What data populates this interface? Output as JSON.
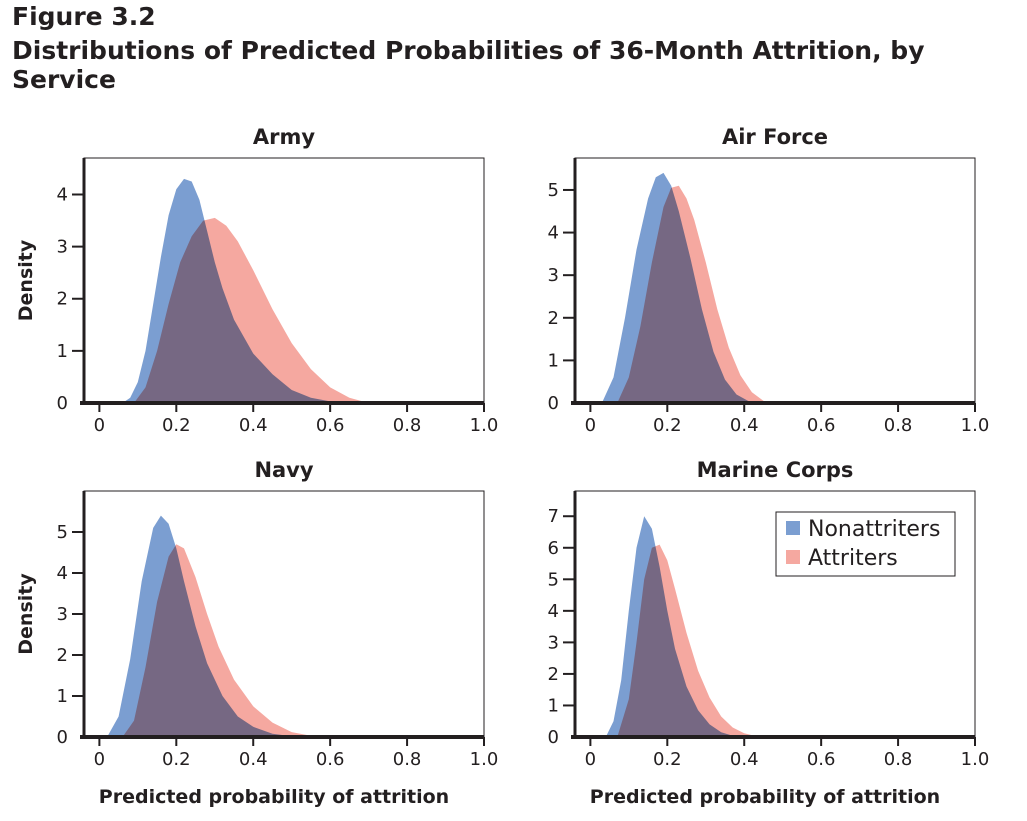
{
  "figure": {
    "label": "Figure 3.2",
    "title": "Distributions of Predicted Probabilities of 36-Month Attrition, by Service"
  },
  "colors": {
    "nonattriters": "#7b9ed1",
    "attriters": "#f5a8a0",
    "overlap_blend": "multiply",
    "axis": "#231f20"
  },
  "legend": {
    "placement": "top-right of Marine Corps panel",
    "items": [
      "Nonattriters",
      "Attriters"
    ]
  },
  "chart_data": [
    {
      "type": "area",
      "title": "Army",
      "xlabel": "",
      "ylabel": "Density",
      "xlim": [
        -0.04,
        1.0
      ],
      "ylim": [
        0,
        4.7
      ],
      "xticks": [
        "0",
        "0.2",
        "0.4",
        "0.6",
        "0.8",
        "1.0"
      ],
      "yticks": [
        "0",
        "1",
        "2",
        "3",
        "4"
      ],
      "xtick_values": [
        0,
        0.2,
        0.4,
        0.6,
        0.8,
        1.0
      ],
      "ytick_values": [
        0,
        1,
        2,
        3,
        4
      ],
      "grid": false,
      "series": [
        {
          "name": "Nonattriters",
          "x": [
            0.06,
            0.08,
            0.1,
            0.12,
            0.14,
            0.16,
            0.18,
            0.2,
            0.22,
            0.24,
            0.26,
            0.28,
            0.3,
            0.32,
            0.35,
            0.4,
            0.45,
            0.5,
            0.55,
            0.6,
            0.65
          ],
          "y": [
            0,
            0.1,
            0.4,
            1.0,
            1.9,
            2.8,
            3.6,
            4.1,
            4.3,
            4.25,
            3.9,
            3.3,
            2.7,
            2.2,
            1.6,
            0.95,
            0.55,
            0.25,
            0.1,
            0.03,
            0
          ]
        },
        {
          "name": "Attriters",
          "x": [
            0.09,
            0.12,
            0.15,
            0.18,
            0.21,
            0.24,
            0.27,
            0.3,
            0.33,
            0.36,
            0.4,
            0.45,
            0.5,
            0.55,
            0.6,
            0.65,
            0.7
          ],
          "y": [
            0,
            0.3,
            1.0,
            1.9,
            2.7,
            3.2,
            3.5,
            3.55,
            3.4,
            3.1,
            2.55,
            1.8,
            1.15,
            0.65,
            0.3,
            0.1,
            0
          ]
        }
      ]
    },
    {
      "type": "area",
      "title": "Air Force",
      "xlabel": "",
      "ylabel": "",
      "xlim": [
        -0.04,
        1.0
      ],
      "ylim": [
        0,
        5.75
      ],
      "xticks": [
        "0",
        "0.2",
        "0.4",
        "0.6",
        "0.8",
        "1.0"
      ],
      "yticks": [
        "0",
        "1",
        "2",
        "3",
        "4",
        "5"
      ],
      "xtick_values": [
        0,
        0.2,
        0.4,
        0.6,
        0.8,
        1.0
      ],
      "ytick_values": [
        0,
        1,
        2,
        3,
        4,
        5
      ],
      "grid": false,
      "series": [
        {
          "name": "Nonattriters",
          "x": [
            0.03,
            0.06,
            0.09,
            0.12,
            0.15,
            0.17,
            0.19,
            0.21,
            0.23,
            0.26,
            0.29,
            0.32,
            0.35,
            0.38,
            0.41,
            0.44
          ],
          "y": [
            0,
            0.6,
            2.0,
            3.6,
            4.8,
            5.3,
            5.4,
            5.1,
            4.5,
            3.4,
            2.2,
            1.2,
            0.55,
            0.2,
            0.05,
            0
          ]
        },
        {
          "name": "Attriters",
          "x": [
            0.07,
            0.1,
            0.13,
            0.16,
            0.19,
            0.21,
            0.23,
            0.25,
            0.27,
            0.3,
            0.33,
            0.36,
            0.39,
            0.42,
            0.45,
            0.48
          ],
          "y": [
            0,
            0.6,
            1.8,
            3.3,
            4.6,
            5.05,
            5.1,
            4.8,
            4.3,
            3.3,
            2.2,
            1.3,
            0.65,
            0.25,
            0.05,
            0
          ]
        }
      ]
    },
    {
      "type": "area",
      "title": "Navy",
      "xlabel": "Predicted probability of attrition",
      "ylabel": "Density",
      "xlim": [
        -0.04,
        1.0
      ],
      "ylim": [
        0,
        6.0
      ],
      "xticks": [
        "0",
        "0.2",
        "0.4",
        "0.6",
        "0.8",
        "1.0"
      ],
      "yticks": [
        "0",
        "1",
        "2",
        "3",
        "4",
        "5"
      ],
      "xtick_values": [
        0,
        0.2,
        0.4,
        0.6,
        0.8,
        1.0
      ],
      "ytick_values": [
        0,
        1,
        2,
        3,
        4,
        5
      ],
      "grid": false,
      "series": [
        {
          "name": "Nonattriters",
          "x": [
            0.02,
            0.05,
            0.08,
            0.11,
            0.14,
            0.16,
            0.18,
            0.2,
            0.22,
            0.25,
            0.28,
            0.32,
            0.36,
            0.4,
            0.45,
            0.5,
            0.55
          ],
          "y": [
            0,
            0.5,
            1.9,
            3.8,
            5.1,
            5.4,
            5.2,
            4.6,
            3.8,
            2.7,
            1.8,
            1.0,
            0.5,
            0.25,
            0.08,
            0.02,
            0
          ]
        },
        {
          "name": "Attriters",
          "x": [
            0.06,
            0.09,
            0.12,
            0.15,
            0.18,
            0.2,
            0.22,
            0.25,
            0.28,
            0.31,
            0.35,
            0.4,
            0.45,
            0.5,
            0.55,
            0.58
          ],
          "y": [
            0,
            0.4,
            1.7,
            3.3,
            4.4,
            4.7,
            4.6,
            3.9,
            3.0,
            2.2,
            1.4,
            0.75,
            0.35,
            0.12,
            0.03,
            0
          ]
        }
      ]
    },
    {
      "type": "area",
      "title": "Marine Corps",
      "xlabel": "Predicted probability of attrition",
      "ylabel": "",
      "xlim": [
        -0.04,
        1.0
      ],
      "ylim": [
        0,
        7.8
      ],
      "xticks": [
        "0",
        "0.2",
        "0.4",
        "0.6",
        "0.8",
        "1.0"
      ],
      "yticks": [
        "0",
        "1",
        "2",
        "3",
        "4",
        "5",
        "6",
        "7"
      ],
      "xtick_values": [
        0,
        0.2,
        0.4,
        0.6,
        0.8,
        1.0
      ],
      "ytick_values": [
        0,
        1,
        2,
        3,
        4,
        5,
        6,
        7
      ],
      "grid": false,
      "series": [
        {
          "name": "Nonattriters",
          "x": [
            0.04,
            0.06,
            0.08,
            0.1,
            0.12,
            0.14,
            0.16,
            0.18,
            0.2,
            0.22,
            0.25,
            0.28,
            0.31,
            0.34,
            0.37,
            0.4
          ],
          "y": [
            0,
            0.5,
            1.8,
            4.0,
            6.0,
            7.0,
            6.6,
            5.4,
            4.0,
            2.8,
            1.6,
            0.85,
            0.4,
            0.15,
            0.04,
            0
          ]
        },
        {
          "name": "Attriters",
          "x": [
            0.07,
            0.1,
            0.12,
            0.14,
            0.16,
            0.18,
            0.2,
            0.22,
            0.25,
            0.28,
            0.31,
            0.34,
            0.37,
            0.4,
            0.43,
            0.46
          ],
          "y": [
            0,
            1.2,
            3.0,
            5.0,
            6.0,
            6.1,
            5.6,
            4.7,
            3.3,
            2.1,
            1.25,
            0.65,
            0.3,
            0.12,
            0.03,
            0
          ]
        }
      ]
    }
  ]
}
